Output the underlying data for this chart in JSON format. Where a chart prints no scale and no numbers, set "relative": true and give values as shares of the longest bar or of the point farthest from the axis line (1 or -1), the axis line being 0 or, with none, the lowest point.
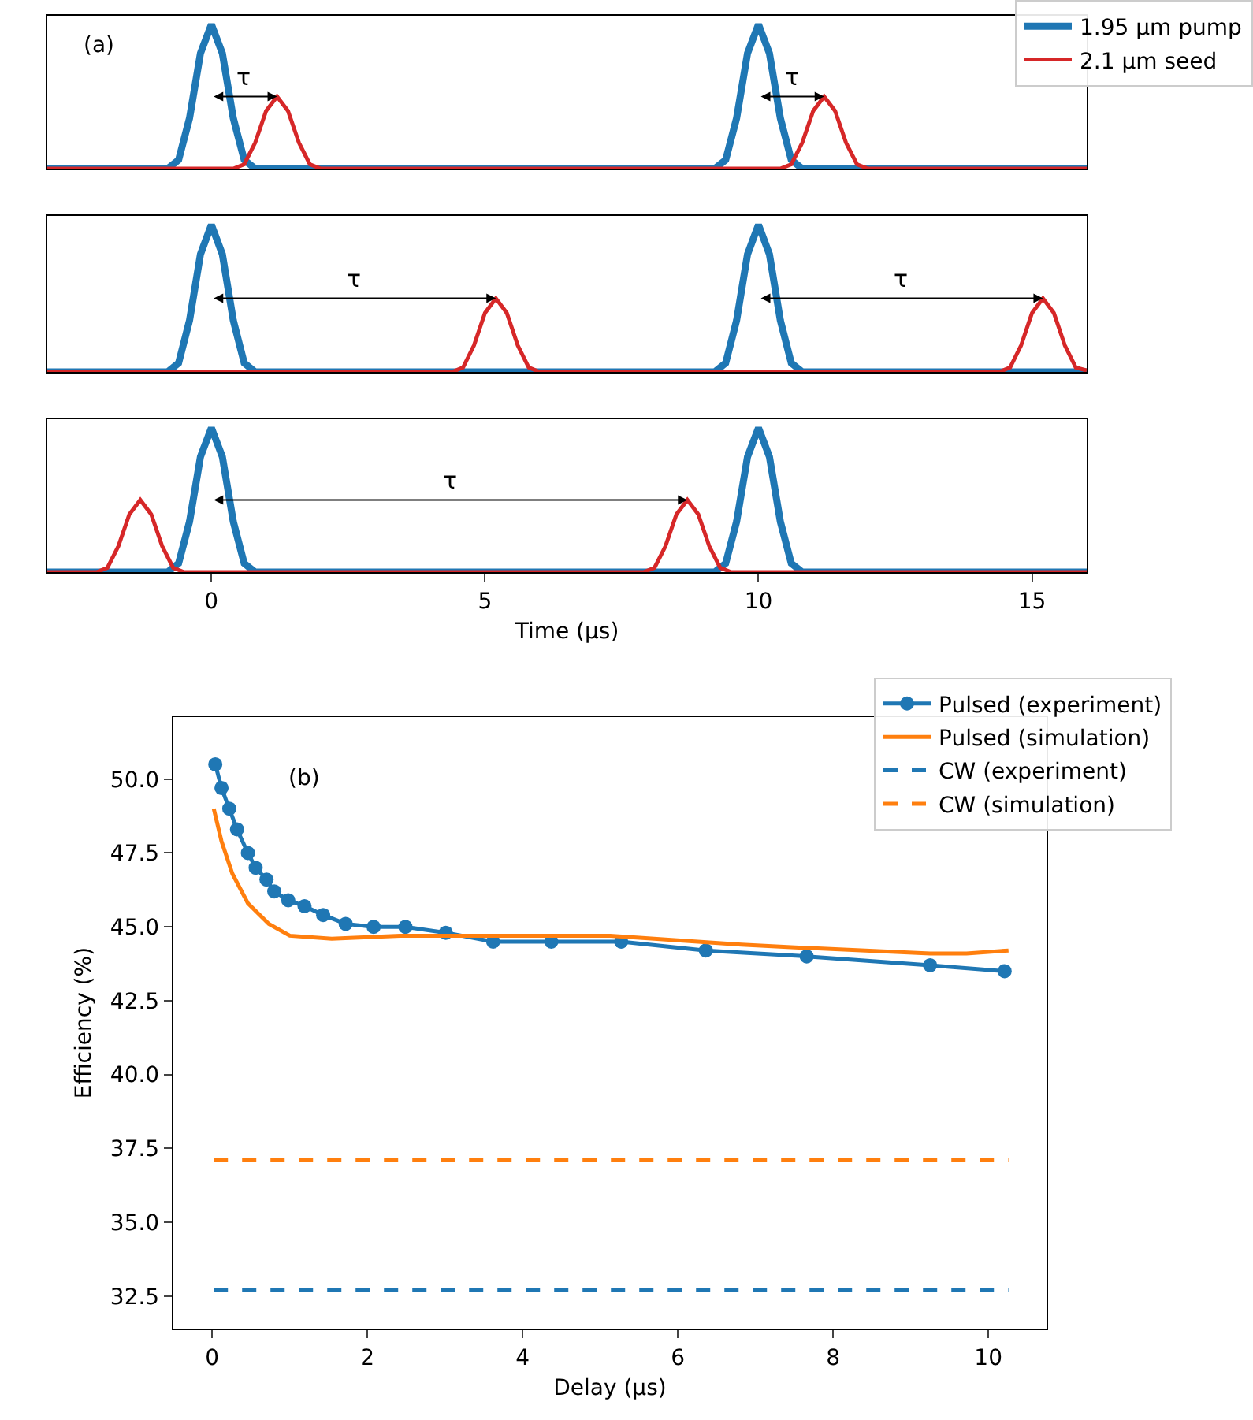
{
  "chart_data": [
    {
      "type": "line",
      "relative": true,
      "xlim": [
        -3,
        16
      ],
      "xticks": [
        0,
        5,
        10,
        15
      ],
      "tick_labels": false,
      "grid": false,
      "legend": "top right",
      "annotations": [
        "(a)",
        "τ",
        "τ"
      ],
      "series": [
        {
          "name": "1.95 µm pump",
          "color": "#1f77b4",
          "x": [
            -3,
            -0.8,
            -0.6,
            -0.4,
            -0.2,
            0,
            0.2,
            0.4,
            0.6,
            0.8,
            9.2,
            9.4,
            9.6,
            9.8,
            10,
            10.2,
            10.4,
            10.6,
            10.8,
            16
          ],
          "values": [
            0,
            0,
            0.06,
            0.35,
            0.8,
            1,
            0.8,
            0.35,
            0.06,
            0,
            0,
            0.06,
            0.35,
            0.8,
            1,
            0.8,
            0.35,
            0.06,
            0,
            0
          ]
        },
        {
          "name": "2.1 µm seed",
          "color": "#d62728",
          "x": [
            -3,
            0.4,
            0.6,
            0.8,
            1.0,
            1.2,
            1.4,
            1.6,
            1.8,
            2.0,
            10.4,
            10.6,
            10.8,
            11.0,
            11.2,
            11.4,
            11.6,
            11.8,
            12.0,
            16
          ],
          "values": [
            0,
            0,
            0.03,
            0.18,
            0.4,
            0.5,
            0.4,
            0.18,
            0.03,
            0,
            0,
            0.03,
            0.18,
            0.4,
            0.5,
            0.4,
            0.18,
            0.03,
            0,
            0
          ]
        }
      ]
    },
    {
      "type": "line",
      "relative": true,
      "xlim": [
        -3,
        16
      ],
      "xticks": [
        0,
        5,
        10,
        15
      ],
      "tick_labels": false,
      "grid": false,
      "annotations": [
        "τ",
        "τ"
      ],
      "series": [
        {
          "color": "#1f77b4",
          "x": [
            -3,
            -0.8,
            -0.6,
            -0.4,
            -0.2,
            0,
            0.2,
            0.4,
            0.6,
            0.8,
            9.2,
            9.4,
            9.6,
            9.8,
            10,
            10.2,
            10.4,
            10.6,
            10.8,
            16
          ],
          "values": [
            0,
            0,
            0.06,
            0.35,
            0.8,
            1,
            0.8,
            0.35,
            0.06,
            0,
            0,
            0.06,
            0.35,
            0.8,
            1,
            0.8,
            0.35,
            0.06,
            0,
            0
          ]
        },
        {
          "color": "#d62728",
          "x": [
            -3,
            4.4,
            4.6,
            4.8,
            5.0,
            5.2,
            5.4,
            5.6,
            5.8,
            6.0,
            14.4,
            14.6,
            14.8,
            15.0,
            15.2,
            15.4,
            15.6,
            15.8,
            16
          ],
          "values": [
            0,
            0,
            0.03,
            0.18,
            0.4,
            0.5,
            0.4,
            0.18,
            0.03,
            0,
            0,
            0.03,
            0.18,
            0.4,
            0.5,
            0.4,
            0.18,
            0.03,
            0.01
          ]
        }
      ]
    },
    {
      "type": "line",
      "relative": true,
      "xlim": [
        -3,
        16
      ],
      "xticks": [
        0,
        5,
        10,
        15
      ],
      "tick_labels": "x",
      "grid": false,
      "xlabel": "Time (µs)",
      "annotations": [
        "τ"
      ],
      "series": [
        {
          "color": "#1f77b4",
          "x": [
            -3,
            -0.8,
            -0.6,
            -0.4,
            -0.2,
            0,
            0.2,
            0.4,
            0.6,
            0.8,
            9.2,
            9.4,
            9.6,
            9.8,
            10,
            10.2,
            10.4,
            10.6,
            10.8,
            16
          ],
          "values": [
            0,
            0,
            0.06,
            0.35,
            0.8,
            1,
            0.8,
            0.35,
            0.06,
            0,
            0,
            0.06,
            0.35,
            0.8,
            1,
            0.8,
            0.35,
            0.06,
            0,
            0
          ]
        },
        {
          "color": "#d62728",
          "x": [
            -3,
            -2.1,
            -1.9,
            -1.7,
            -1.5,
            -1.3,
            -1.1,
            -0.9,
            -0.7,
            -0.5,
            7.9,
            8.1,
            8.3,
            8.5,
            8.7,
            8.9,
            9.1,
            9.3,
            9.5,
            16
          ],
          "values": [
            0,
            0,
            0.03,
            0.18,
            0.4,
            0.5,
            0.4,
            0.18,
            0.03,
            0,
            0,
            0.03,
            0.18,
            0.4,
            0.5,
            0.4,
            0.18,
            0.03,
            0,
            0
          ]
        }
      ]
    },
    {
      "type": "line",
      "xlabel": "Delay (µs)",
      "ylabel": "Efficiency (%)",
      "xlim": [
        -0.5,
        10.75
      ],
      "xticks": [
        0,
        2,
        4,
        6,
        8,
        10
      ],
      "ylim": [
        31.4,
        52.1
      ],
      "yticks": [
        {
          "value": 32.5,
          "label": "32.5"
        },
        {
          "value": 35,
          "label": "35.0"
        },
        {
          "value": 37.5,
          "label": "37.5"
        },
        {
          "value": 40,
          "label": "40.0"
        },
        {
          "value": 42.5,
          "label": "42.5"
        },
        {
          "value": 45,
          "label": "45.0"
        },
        {
          "value": 47.5,
          "label": "47.5"
        },
        {
          "value": 50,
          "label": "50.0"
        }
      ],
      "grid": false,
      "legend": "top right",
      "annotations": [
        "(b)"
      ],
      "series": [
        {
          "name": "Pulsed (experiment)",
          "color": "#1f77b4",
          "marker": "circle",
          "line_style": "solid",
          "x": [
            0.04,
            0.12,
            0.22,
            0.32,
            0.46,
            0.56,
            0.7,
            0.8,
            0.98,
            1.19,
            1.43,
            1.72,
            2.08,
            2.49,
            3.01,
            3.62,
            4.37,
            5.27,
            6.36,
            7.66,
            9.25,
            10.21
          ],
          "values": [
            50.5,
            49.7,
            49.0,
            48.3,
            47.5,
            47.0,
            46.6,
            46.2,
            45.9,
            45.7,
            45.4,
            45.1,
            45.0,
            45.0,
            44.8,
            44.5,
            44.5,
            44.5,
            44.2,
            44.0,
            43.7,
            43.5
          ]
        },
        {
          "name": "Pulsed (simulation)",
          "color": "#ff7f0e",
          "marker": "none",
          "line_style": "solid",
          "x": [
            0.02,
            0.12,
            0.26,
            0.46,
            0.73,
            1.0,
            1.54,
            2.42,
            3.1,
            5.13,
            6.82,
            7.56,
            9.25,
            9.72,
            10.26
          ],
          "values": [
            49.0,
            47.9,
            46.8,
            45.8,
            45.1,
            44.7,
            44.6,
            44.7,
            44.7,
            44.7,
            44.4,
            44.3,
            44.1,
            44.1,
            44.2
          ]
        },
        {
          "name": "CW (experiment)",
          "color": "#1f77b4",
          "marker": "none",
          "line_style": "dashed",
          "x": [
            0.02,
            10.26
          ],
          "values": [
            32.7,
            32.7
          ]
        },
        {
          "name": "CW (simulation)",
          "color": "#ff7f0e",
          "marker": "none",
          "line_style": "dashed",
          "x": [
            0.02,
            10.26
          ],
          "values": [
            37.1,
            37.1
          ]
        }
      ]
    }
  ]
}
